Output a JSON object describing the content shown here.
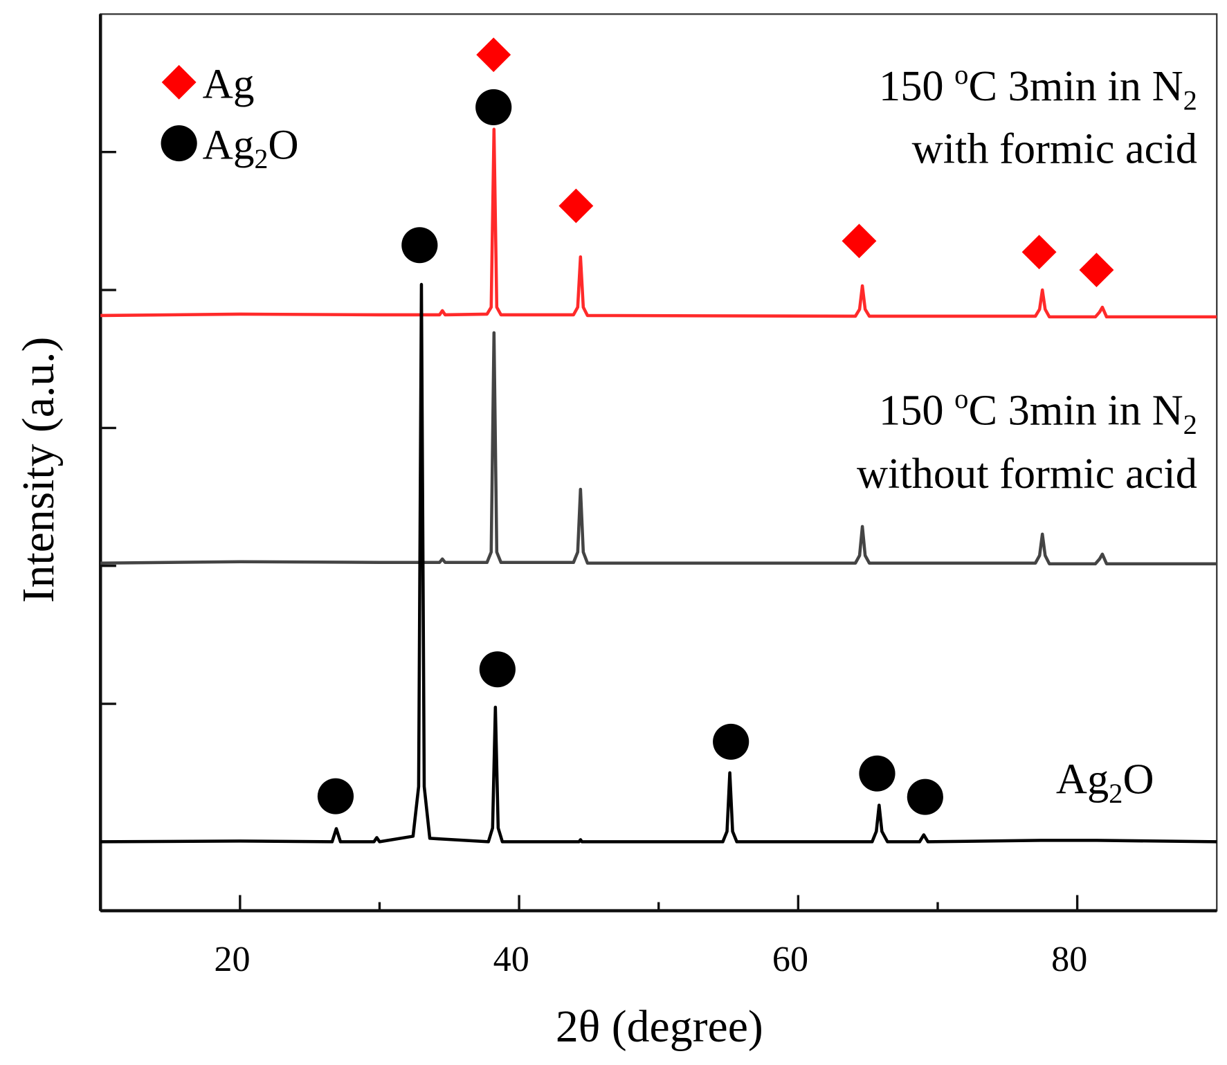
{
  "chart_data": {
    "type": "line",
    "xlabel": "2θ (degree)",
    "ylabel": "Intensity (a.u.)",
    "xlim": [
      10,
      90
    ],
    "xticks": [
      20,
      40,
      60,
      80
    ],
    "xminorticks": [
      30,
      50,
      70
    ],
    "ylim": [
      0,
      13
    ],
    "yticks": [
      1,
      3,
      5,
      7,
      9,
      11
    ],
    "series": [
      {
        "color": "#ff2a2a",
        "x": [
          10,
          20,
          30,
          34.3,
          34.5,
          34.7,
          37.7,
          38.0,
          38.2,
          38.4,
          38.7,
          43.9,
          44.2,
          44.4,
          44.6,
          44.9,
          64.1,
          64.4,
          64.6,
          64.8,
          65.1,
          77.0,
          77.3,
          77.5,
          77.7,
          78.0,
          81.3,
          81.6,
          81.8,
          82.1,
          90
        ],
        "values": [
          8.63,
          8.65,
          8.64,
          8.64,
          8.7,
          8.64,
          8.65,
          8.75,
          11.33,
          8.75,
          8.64,
          8.64,
          8.75,
          9.48,
          8.75,
          8.63,
          8.62,
          8.72,
          9.06,
          8.72,
          8.62,
          8.62,
          8.72,
          9.0,
          8.72,
          8.61,
          8.61,
          8.68,
          8.75,
          8.61,
          8.61
        ]
      },
      {
        "color": "#444444",
        "x": [
          10,
          20,
          30,
          34.3,
          34.5,
          34.7,
          37.7,
          38.0,
          38.2,
          38.4,
          38.7,
          43.9,
          44.2,
          44.4,
          44.6,
          44.9,
          64.1,
          64.4,
          64.6,
          64.8,
          65.1,
          77.0,
          77.3,
          77.5,
          77.7,
          78.0,
          81.3,
          81.6,
          81.8,
          82.1,
          90
        ],
        "values": [
          5.04,
          5.06,
          5.05,
          5.05,
          5.1,
          5.05,
          5.05,
          5.2,
          8.38,
          5.2,
          5.05,
          5.05,
          5.2,
          6.11,
          5.2,
          5.04,
          5.04,
          5.15,
          5.57,
          5.15,
          5.04,
          5.04,
          5.15,
          5.46,
          5.15,
          5.03,
          5.03,
          5.1,
          5.17,
          5.03,
          5.03
        ]
      },
      {
        "color": "#000000",
        "x": [
          10,
          20,
          26.6,
          26.9,
          27.2,
          29.6,
          29.8,
          30.0,
          32.4,
          32.8,
          33.0,
          33.2,
          33.6,
          37.8,
          38.1,
          38.3,
          38.5,
          38.8,
          44.3,
          44.4,
          44.5,
          54.6,
          54.9,
          55.1,
          55.3,
          55.6,
          65.3,
          65.6,
          65.8,
          66.0,
          66.4,
          68.7,
          69.0,
          69.3,
          77.4,
          81.4,
          90
        ],
        "values": [
          1.0,
          1.01,
          1.0,
          1.19,
          1.0,
          1.0,
          1.06,
          1.0,
          1.08,
          1.8,
          9.08,
          1.8,
          1.05,
          1.0,
          1.2,
          2.95,
          1.2,
          1.0,
          1.0,
          1.03,
          1.0,
          1.0,
          1.15,
          2.0,
          1.15,
          1.0,
          1.0,
          1.15,
          1.53,
          1.15,
          1.0,
          1.0,
          1.1,
          1.0,
          1.02,
          1.02,
          1.0
        ]
      }
    ],
    "legend": [
      {
        "symbol": "diamond",
        "color": "#ff0000",
        "parts": [
          {
            "text": "Ag"
          }
        ]
      },
      {
        "symbol": "circle",
        "color": "#000000",
        "parts": [
          {
            "text": "Ag"
          },
          {
            "text": "2",
            "sub": true
          },
          {
            "text": "O"
          }
        ]
      }
    ],
    "annotations": [
      {
        "lines": [
          [
            {
              "text": "150 "
            },
            {
              "text": "o",
              "sup": true
            },
            {
              "text": "C 3min in N"
            },
            {
              "text": "2",
              "sub": true
            }
          ],
          [
            {
              "text": "with formic acid"
            }
          ]
        ]
      },
      {
        "lines": [
          [
            {
              "text": "150 "
            },
            {
              "text": "o",
              "sup": true
            },
            {
              "text": "C 3min in N"
            },
            {
              "text": "2",
              "sub": true
            }
          ],
          [
            {
              "text": "without formic acid"
            }
          ]
        ]
      },
      {
        "lines": [
          [
            {
              "text": "Ag"
            },
            {
              "text": "2",
              "sub": true
            },
            {
              "text": "O"
            }
          ]
        ]
      }
    ],
    "peak_markers": [
      {
        "symbol": "diamond",
        "color": "#ff0000",
        "x": 38.17,
        "y": 12.41
      },
      {
        "symbol": "diamond",
        "color": "#ff0000",
        "x": 44.08,
        "y": 10.22
      },
      {
        "symbol": "diamond",
        "color": "#ff0000",
        "x": 64.37,
        "y": 9.71
      },
      {
        "symbol": "diamond",
        "color": "#ff0000",
        "x": 77.27,
        "y": 9.55
      },
      {
        "symbol": "diamond",
        "color": "#ff0000",
        "x": 81.38,
        "y": 9.29
      },
      {
        "symbol": "circle",
        "color": "#000000",
        "x": 38.17,
        "y": 11.65
      },
      {
        "symbol": "circle",
        "color": "#000000",
        "x": 32.87,
        "y": 9.65
      },
      {
        "symbol": "circle",
        "color": "#000000",
        "x": 38.45,
        "y": 3.5
      },
      {
        "symbol": "circle",
        "color": "#000000",
        "x": 26.85,
        "y": 1.66
      },
      {
        "symbol": "circle",
        "color": "#000000",
        "x": 55.18,
        "y": 2.45
      },
      {
        "symbol": "circle",
        "color": "#000000",
        "x": 65.66,
        "y": 1.99
      },
      {
        "symbol": "circle",
        "color": "#000000",
        "x": 69.1,
        "y": 1.65
      }
    ]
  }
}
